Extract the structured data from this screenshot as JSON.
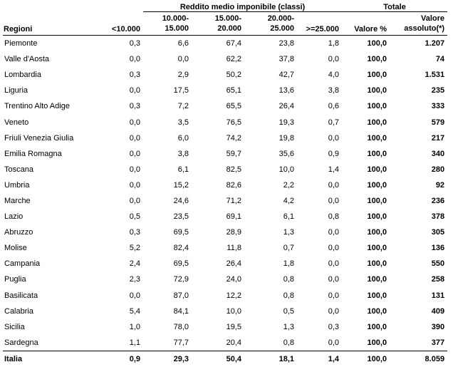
{
  "header": {
    "group_reddito": "Reddito medio imponibile (classi)",
    "group_totale": "Totale",
    "col_regioni": "Regioni",
    "col_lt10": "<10.000",
    "col_10_15": "10.000-\n15.000",
    "col_15_20": "15.000-\n20.000",
    "col_20_25": "20.000-\n25.000",
    "col_ge25": ">=25.000",
    "col_valore_pct": "Valore %",
    "col_valore_abs": "Valore\nassoluto(*)"
  },
  "rows": [
    {
      "regione": "Piemonte",
      "c1": "0,3",
      "c2": "6,6",
      "c3": "67,4",
      "c4": "23,8",
      "c5": "1,8",
      "pct": "100,0",
      "abs": "1.207"
    },
    {
      "regione": "Valle d'Aosta",
      "c1": "0,0",
      "c2": "0,0",
      "c3": "62,2",
      "c4": "37,8",
      "c5": "0,0",
      "pct": "100,0",
      "abs": "74"
    },
    {
      "regione": "Lombardia",
      "c1": "0,3",
      "c2": "2,9",
      "c3": "50,2",
      "c4": "42,7",
      "c5": "4,0",
      "pct": "100,0",
      "abs": "1.531"
    },
    {
      "regione": "Liguria",
      "c1": "0,0",
      "c2": "17,5",
      "c3": "65,1",
      "c4": "13,6",
      "c5": "3,8",
      "pct": "100,0",
      "abs": "235"
    },
    {
      "regione": "Trentino Alto Adige",
      "c1": "0,3",
      "c2": "7,2",
      "c3": "65,5",
      "c4": "26,4",
      "c5": "0,6",
      "pct": "100,0",
      "abs": "333"
    },
    {
      "regione": "Veneto",
      "c1": "0,0",
      "c2": "3,5",
      "c3": "76,5",
      "c4": "19,3",
      "c5": "0,7",
      "pct": "100,0",
      "abs": "579"
    },
    {
      "regione": "Friuli Venezia Giulia",
      "c1": "0,0",
      "c2": "6,0",
      "c3": "74,2",
      "c4": "19,8",
      "c5": "0,0",
      "pct": "100,0",
      "abs": "217"
    },
    {
      "regione": "Emilia Romagna",
      "c1": "0,0",
      "c2": "3,8",
      "c3": "59,7",
      "c4": "35,6",
      "c5": "0,9",
      "pct": "100,0",
      "abs": "340"
    },
    {
      "regione": "Toscana",
      "c1": "0,0",
      "c2": "6,1",
      "c3": "82,5",
      "c4": "10,0",
      "c5": "1,4",
      "pct": "100,0",
      "abs": "280"
    },
    {
      "regione": "Umbria",
      "c1": "0,0",
      "c2": "15,2",
      "c3": "82,6",
      "c4": "2,2",
      "c5": "0,0",
      "pct": "100,0",
      "abs": "92"
    },
    {
      "regione": "Marche",
      "c1": "0,0",
      "c2": "24,6",
      "c3": "71,2",
      "c4": "4,2",
      "c5": "0,0",
      "pct": "100,0",
      "abs": "236"
    },
    {
      "regione": "Lazio",
      "c1": "0,5",
      "c2": "23,5",
      "c3": "69,1",
      "c4": "6,1",
      "c5": "0,8",
      "pct": "100,0",
      "abs": "378"
    },
    {
      "regione": "Abruzzo",
      "c1": "0,3",
      "c2": "69,5",
      "c3": "28,9",
      "c4": "1,3",
      "c5": "0,0",
      "pct": "100,0",
      "abs": "305"
    },
    {
      "regione": "Molise",
      "c1": "5,2",
      "c2": "82,4",
      "c3": "11,8",
      "c4": "0,7",
      "c5": "0,0",
      "pct": "100,0",
      "abs": "136"
    },
    {
      "regione": "Campania",
      "c1": "2,4",
      "c2": "69,5",
      "c3": "26,4",
      "c4": "1,8",
      "c5": "0,0",
      "pct": "100,0",
      "abs": "550"
    },
    {
      "regione": "Puglia",
      "c1": "2,3",
      "c2": "72,9",
      "c3": "24,0",
      "c4": "0,8",
      "c5": "0,0",
      "pct": "100,0",
      "abs": "258"
    },
    {
      "regione": "Basilicata",
      "c1": "0,0",
      "c2": "87,0",
      "c3": "12,2",
      "c4": "0,8",
      "c5": "0,0",
      "pct": "100,0",
      "abs": "131"
    },
    {
      "regione": "Calabria",
      "c1": "5,4",
      "c2": "84,1",
      "c3": "10,0",
      "c4": "0,5",
      "c5": "0,0",
      "pct": "100,0",
      "abs": "409"
    },
    {
      "regione": "Sicilia",
      "c1": "1,0",
      "c2": "78,0",
      "c3": "19,5",
      "c4": "1,3",
      "c5": "0,3",
      "pct": "100,0",
      "abs": "390"
    },
    {
      "regione": "Sardegna",
      "c1": "1,1",
      "c2": "77,7",
      "c3": "20,4",
      "c4": "0,8",
      "c5": "0,0",
      "pct": "100,0",
      "abs": "377"
    }
  ],
  "total": {
    "regione": "Italia",
    "c1": "0,9",
    "c2": "29,3",
    "c3": "50,4",
    "c4": "18,1",
    "c5": "1,4",
    "pct": "100,0",
    "abs": "8.059"
  }
}
